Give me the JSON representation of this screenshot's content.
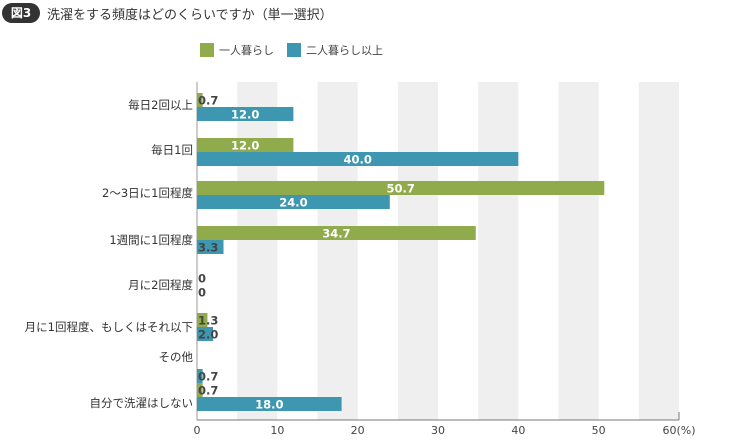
{
  "header": {
    "badge": "図3",
    "title": "洗濯をする頻度はどのくらいですか（単一選択）"
  },
  "chart_data": {
    "type": "bar",
    "orientation": "horizontal",
    "title": "洗濯をする頻度はどのくらいですか（単一選択）",
    "categories": [
      "毎日2回以上",
      "毎日1回",
      "2〜3日に1回程度",
      "1週間に1回程度",
      "月に2回程度",
      "月に1回程度、もしくはそれ以下",
      "その他",
      "自分で洗濯はしない"
    ],
    "series": [
      {
        "name": "一人暮らし",
        "color": "#8fab4c",
        "values": [
          0.7,
          12.0,
          50.7,
          34.7,
          0,
          1.3,
          null,
          0.7
        ],
        "labels": [
          "0.7",
          "12.0",
          "50.7",
          "34.7",
          "0",
          "1.3",
          "",
          "0.7"
        ]
      },
      {
        "name": "二人暮らし以上",
        "color": "#3e97b0",
        "values": [
          12.0,
          40.0,
          24.0,
          3.3,
          0,
          2.0,
          0.7,
          18.0
        ],
        "labels": [
          "12.0",
          "40.0",
          "24.0",
          "3.3",
          "0",
          "2.0",
          "0.7",
          "18.0"
        ]
      }
    ],
    "xlim": [
      0,
      60
    ],
    "xticks": [
      "0",
      "10",
      "20",
      "30",
      "40",
      "50",
      "60(%)"
    ],
    "grid": "alternating vertical bands",
    "legend": "top-center"
  }
}
